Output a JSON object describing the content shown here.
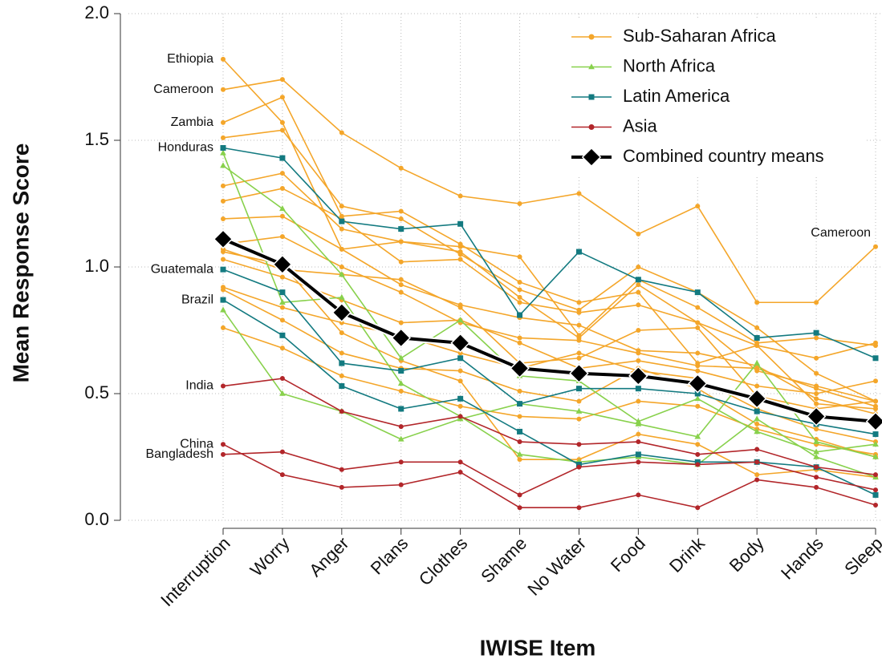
{
  "chart_data": {
    "type": "line",
    "x_label": "IWISE Item",
    "y_label": "Mean Response Score",
    "categories": [
      "Interruption",
      "Worry",
      "Anger",
      "Plans",
      "Clothes",
      "Shame",
      "No Water",
      "Food",
      "Drink",
      "Body",
      "Hands",
      "Sleep"
    ],
    "ylim": [
      0,
      2
    ],
    "yticks": [
      {
        "value": 0,
        "label": "0.0"
      },
      0.5,
      {
        "value": 1,
        "label": "1.0"
      },
      1.5,
      {
        "value": 2,
        "label": "2.0"
      }
    ],
    "grid": true,
    "legend": "top-right",
    "series": [
      {
        "name": "Sub-Saharan Africa",
        "color": "#f4a62a",
        "marker": "circle",
        "lines": [
          {
            "label": "Ethiopia",
            "values": [
              1.82,
              1.57,
              1.07,
              1.1,
              1.06,
              0.88,
              0.72,
              0.93,
              0.78,
              0.59,
              0.53,
              0.47
            ]
          },
          {
            "label": "Cameroon",
            "end_label": "Cameroon",
            "values": [
              1.7,
              1.74,
              1.53,
              1.39,
              1.28,
              1.25,
              1.29,
              1.13,
              1.24,
              0.86,
              0.86,
              1.08
            ]
          },
          {
            "label": "Zambia",
            "values": [
              1.57,
              1.67,
              1.2,
              1.22,
              1.09,
              0.94,
              0.86,
              0.9,
              0.62,
              0.69,
              0.46,
              0.44
            ]
          },
          {
            "values": [
              1.51,
              1.54,
              1.24,
              1.19,
              1.05,
              0.91,
              0.83,
              1.0,
              0.9,
              0.76,
              0.58,
              0.47
            ]
          },
          {
            "values": [
              1.32,
              1.37,
              1.15,
              1.1,
              1.08,
              1.04,
              0.73,
              0.95,
              0.84,
              0.7,
              0.72,
              0.69
            ]
          },
          {
            "values": [
              1.26,
              1.31,
              1.19,
              1.02,
              1.03,
              0.86,
              0.82,
              0.85,
              0.78,
              0.69,
              0.64,
              0.7
            ]
          },
          {
            "values": [
              1.19,
              1.2,
              1.07,
              0.93,
              0.85,
              0.8,
              0.77,
              0.67,
              0.66,
              0.61,
              0.48,
              0.42
            ]
          },
          {
            "values": [
              1.09,
              1.12,
              1.0,
              0.9,
              0.78,
              0.72,
              0.71,
              0.66,
              0.61,
              0.6,
              0.52,
              0.45
            ]
          },
          {
            "values": [
              1.07,
              0.99,
              0.97,
              0.95,
              0.84,
              0.62,
              0.64,
              0.75,
              0.76,
              0.49,
              0.44,
              0.47
            ]
          },
          {
            "values": [
              1.03,
              0.96,
              0.87,
              0.78,
              0.79,
              0.7,
              0.6,
              0.63,
              0.59,
              0.53,
              0.5,
              0.55
            ]
          },
          {
            "values": [
              0.92,
              0.84,
              0.78,
              0.73,
              0.66,
              0.6,
              0.66,
              0.59,
              0.56,
              0.44,
              0.36,
              0.31
            ]
          },
          {
            "values": [
              0.91,
              0.79,
              0.66,
              0.6,
              0.59,
              0.51,
              0.47,
              0.6,
              0.52,
              0.38,
              0.32,
              0.25
            ]
          },
          {
            "values": [
              0.76,
              0.68,
              0.57,
              0.51,
              0.45,
              0.41,
              0.4,
              0.47,
              0.45,
              0.36,
              0.3,
              0.26
            ]
          },
          {
            "values": [
              1.06,
              1.01,
              0.74,
              0.63,
              0.55,
              0.24,
              0.24,
              0.34,
              0.3,
              0.18,
              0.2,
              0.17
            ]
          }
        ]
      },
      {
        "name": "North Africa",
        "color": "#88d14c",
        "marker": "triangle",
        "lines": [
          {
            "values": [
              1.4,
              1.23,
              0.97,
              0.64,
              0.79,
              0.57,
              0.55,
              0.39,
              0.48,
              0.35,
              0.27,
              0.3
            ]
          },
          {
            "values": [
              1.45,
              0.86,
              0.88,
              0.54,
              0.41,
              0.26,
              0.23,
              0.25,
              0.22,
              0.4,
              0.25,
              0.17
            ]
          },
          {
            "values": [
              0.83,
              0.5,
              0.43,
              0.32,
              0.4,
              0.46,
              0.43,
              0.38,
              0.33,
              0.62,
              0.31,
              0.25
            ]
          }
        ]
      },
      {
        "name": "Latin America",
        "color": "#137a80",
        "marker": "square",
        "lines": [
          {
            "label": "Honduras",
            "values": [
              1.47,
              1.43,
              1.18,
              1.15,
              1.17,
              0.81,
              1.06,
              0.95,
              0.9,
              0.72,
              0.74,
              0.64
            ]
          },
          {
            "label": "Guatemala",
            "values": [
              0.99,
              0.9,
              0.62,
              0.59,
              0.64,
              0.46,
              0.52,
              0.52,
              0.5,
              0.43,
              0.38,
              0.34
            ]
          },
          {
            "label": "Brazil",
            "values": [
              0.87,
              0.73,
              0.53,
              0.44,
              0.48,
              0.35,
              0.22,
              0.26,
              0.23,
              0.23,
              0.21,
              0.1
            ]
          }
        ]
      },
      {
        "name": "Asia",
        "color": "#b2262a",
        "marker": "circle",
        "lines": [
          {
            "label": "India",
            "values": [
              0.53,
              0.56,
              0.43,
              0.37,
              0.41,
              0.31,
              0.3,
              0.31,
              0.26,
              0.28,
              0.21,
              0.18
            ]
          },
          {
            "label": "China",
            "values": [
              0.3,
              0.18,
              0.13,
              0.14,
              0.19,
              0.05,
              0.05,
              0.1,
              0.05,
              0.16,
              0.13,
              0.06
            ]
          },
          {
            "label": "Bangladesh",
            "values": [
              0.26,
              0.27,
              0.2,
              0.23,
              0.23,
              0.1,
              0.21,
              0.23,
              0.22,
              0.23,
              0.17,
              0.12
            ]
          }
        ]
      },
      {
        "name": "Combined country means",
        "color": "#000000",
        "marker": "diamond",
        "lines": [
          {
            "values": [
              1.11,
              1.01,
              0.82,
              0.72,
              0.7,
              0.6,
              0.58,
              0.57,
              0.54,
              0.48,
              0.41,
              0.39
            ]
          }
        ]
      }
    ]
  }
}
